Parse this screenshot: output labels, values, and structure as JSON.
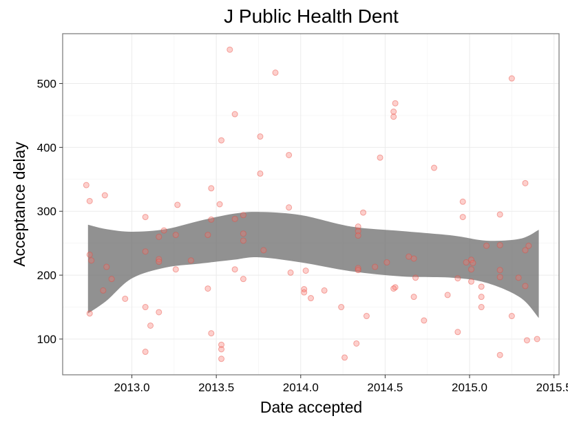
{
  "chart_data": {
    "type": "scatter",
    "title": "J Public Health Dent",
    "xlabel": "Date accepted",
    "ylabel": "Acceptance delay",
    "xlim": [
      2012.59,
      2015.53
    ],
    "ylim": [
      44,
      578
    ],
    "xticks": [
      2013.0,
      2013.5,
      2014.0,
      2014.5,
      2015.0,
      2015.5
    ],
    "xtick_labels": [
      "2013.0",
      "2013.5",
      "2014.0",
      "2014.5",
      "2015.0",
      "2015.5"
    ],
    "yticks": [
      100,
      200,
      300,
      400,
      500
    ],
    "ytick_labels": [
      "100",
      "200",
      "300",
      "400",
      "500"
    ],
    "grid": true,
    "legend": "none",
    "point_color": "#F8766D",
    "band_color": "#666666",
    "points": [
      {
        "x": 2012.73,
        "y": 341
      },
      {
        "x": 2012.75,
        "y": 316
      },
      {
        "x": 2012.75,
        "y": 232
      },
      {
        "x": 2012.76,
        "y": 223
      },
      {
        "x": 2012.75,
        "y": 140
      },
      {
        "x": 2012.84,
        "y": 325
      },
      {
        "x": 2012.85,
        "y": 213
      },
      {
        "x": 2012.88,
        "y": 194
      },
      {
        "x": 2012.83,
        "y": 176
      },
      {
        "x": 2012.96,
        "y": 163
      },
      {
        "x": 2013.08,
        "y": 291
      },
      {
        "x": 2013.08,
        "y": 237
      },
      {
        "x": 2013.08,
        "y": 150
      },
      {
        "x": 2013.08,
        "y": 80
      },
      {
        "x": 2013.11,
        "y": 121
      },
      {
        "x": 2013.16,
        "y": 260
      },
      {
        "x": 2013.16,
        "y": 225
      },
      {
        "x": 2013.16,
        "y": 221
      },
      {
        "x": 2013.16,
        "y": 142
      },
      {
        "x": 2013.19,
        "y": 270
      },
      {
        "x": 2013.26,
        "y": 263
      },
      {
        "x": 2013.27,
        "y": 310
      },
      {
        "x": 2013.26,
        "y": 209
      },
      {
        "x": 2013.35,
        "y": 223
      },
      {
        "x": 2013.45,
        "y": 263
      },
      {
        "x": 2013.45,
        "y": 179
      },
      {
        "x": 2013.47,
        "y": 336
      },
      {
        "x": 2013.47,
        "y": 287
      },
      {
        "x": 2013.47,
        "y": 109
      },
      {
        "x": 2013.52,
        "y": 311
      },
      {
        "x": 2013.53,
        "y": 411
      },
      {
        "x": 2013.53,
        "y": 91
      },
      {
        "x": 2013.53,
        "y": 84
      },
      {
        "x": 2013.53,
        "y": 69
      },
      {
        "x": 2013.58,
        "y": 553
      },
      {
        "x": 2013.61,
        "y": 452
      },
      {
        "x": 2013.61,
        "y": 288
      },
      {
        "x": 2013.61,
        "y": 209
      },
      {
        "x": 2013.66,
        "y": 294
      },
      {
        "x": 2013.66,
        "y": 265
      },
      {
        "x": 2013.66,
        "y": 254
      },
      {
        "x": 2013.66,
        "y": 194
      },
      {
        "x": 2013.76,
        "y": 417
      },
      {
        "x": 2013.76,
        "y": 359
      },
      {
        "x": 2013.78,
        "y": 239
      },
      {
        "x": 2013.85,
        "y": 517
      },
      {
        "x": 2013.93,
        "y": 388
      },
      {
        "x": 2013.93,
        "y": 306
      },
      {
        "x": 2013.94,
        "y": 204
      },
      {
        "x": 2014.03,
        "y": 207
      },
      {
        "x": 2014.02,
        "y": 178
      },
      {
        "x": 2014.02,
        "y": 173
      },
      {
        "x": 2014.06,
        "y": 164
      },
      {
        "x": 2014.14,
        "y": 176
      },
      {
        "x": 2014.24,
        "y": 150
      },
      {
        "x": 2014.26,
        "y": 71
      },
      {
        "x": 2014.34,
        "y": 276
      },
      {
        "x": 2014.34,
        "y": 269
      },
      {
        "x": 2014.34,
        "y": 262
      },
      {
        "x": 2014.34,
        "y": 211
      },
      {
        "x": 2014.34,
        "y": 208
      },
      {
        "x": 2014.33,
        "y": 93
      },
      {
        "x": 2014.37,
        "y": 298
      },
      {
        "x": 2014.39,
        "y": 136
      },
      {
        "x": 2014.44,
        "y": 213
      },
      {
        "x": 2014.47,
        "y": 384
      },
      {
        "x": 2014.51,
        "y": 220
      },
      {
        "x": 2014.56,
        "y": 469
      },
      {
        "x": 2014.55,
        "y": 456
      },
      {
        "x": 2014.55,
        "y": 448
      },
      {
        "x": 2014.56,
        "y": 181
      },
      {
        "x": 2014.55,
        "y": 179
      },
      {
        "x": 2014.64,
        "y": 229
      },
      {
        "x": 2014.67,
        "y": 226
      },
      {
        "x": 2014.68,
        "y": 196
      },
      {
        "x": 2014.67,
        "y": 166
      },
      {
        "x": 2014.73,
        "y": 129
      },
      {
        "x": 2014.79,
        "y": 368
      },
      {
        "x": 2014.87,
        "y": 169
      },
      {
        "x": 2014.93,
        "y": 195
      },
      {
        "x": 2014.93,
        "y": 111
      },
      {
        "x": 2014.96,
        "y": 315
      },
      {
        "x": 2014.96,
        "y": 291
      },
      {
        "x": 2014.98,
        "y": 220
      },
      {
        "x": 2015.01,
        "y": 224
      },
      {
        "x": 2015.02,
        "y": 219
      },
      {
        "x": 2015.01,
        "y": 209
      },
      {
        "x": 2015.01,
        "y": 190
      },
      {
        "x": 2015.07,
        "y": 182
      },
      {
        "x": 2015.07,
        "y": 166
      },
      {
        "x": 2015.07,
        "y": 150
      },
      {
        "x": 2015.1,
        "y": 246
      },
      {
        "x": 2015.18,
        "y": 295
      },
      {
        "x": 2015.18,
        "y": 247
      },
      {
        "x": 2015.18,
        "y": 208
      },
      {
        "x": 2015.18,
        "y": 197
      },
      {
        "x": 2015.18,
        "y": 75
      },
      {
        "x": 2015.25,
        "y": 508
      },
      {
        "x": 2015.25,
        "y": 136
      },
      {
        "x": 2015.29,
        "y": 196
      },
      {
        "x": 2015.33,
        "y": 344
      },
      {
        "x": 2015.33,
        "y": 239
      },
      {
        "x": 2015.33,
        "y": 183
      },
      {
        "x": 2015.35,
        "y": 246
      },
      {
        "x": 2015.34,
        "y": 98
      },
      {
        "x": 2015.4,
        "y": 100
      }
    ],
    "band": {
      "x": [
        2012.74,
        2012.85,
        2013.0,
        2013.2,
        2013.4,
        2013.6,
        2013.75,
        2014.0,
        2014.3,
        2014.6,
        2014.9,
        2015.1,
        2015.3,
        2015.41
      ],
      "lower": [
        140,
        160,
        195,
        212,
        218,
        224,
        228,
        220,
        206,
        198,
        196,
        188,
        165,
        133
      ],
      "upper": [
        279,
        272,
        268,
        272,
        285,
        296,
        299,
        294,
        276,
        269,
        262,
        254,
        257,
        271
      ]
    }
  }
}
